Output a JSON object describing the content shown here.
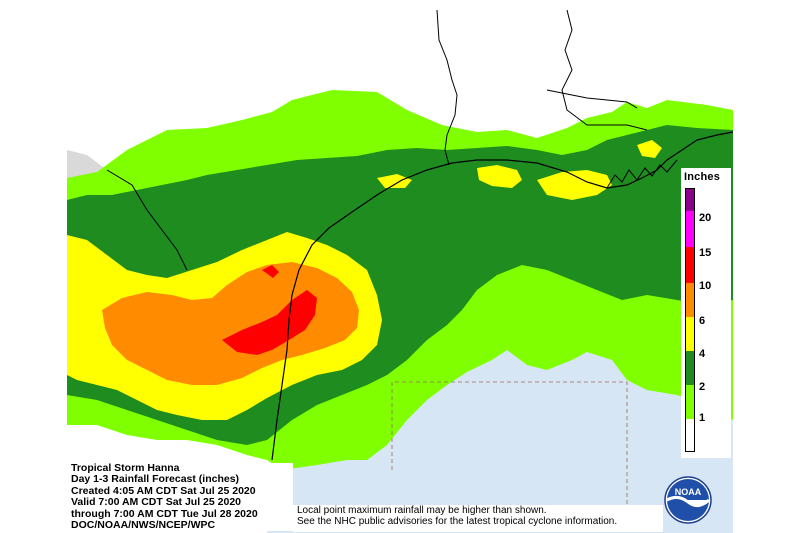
{
  "legend": {
    "title": "Inches",
    "ticks": [
      {
        "label": "20",
        "value": 20
      },
      {
        "label": "15",
        "value": 15
      },
      {
        "label": "10",
        "value": 10
      },
      {
        "label": "6",
        "value": 6
      },
      {
        "label": "4",
        "value": 4
      },
      {
        "label": "2",
        "value": 2
      },
      {
        "label": "1",
        "value": 1
      }
    ],
    "colors": {
      "0-1": "#ffffff",
      "1-2": "#7fff00",
      "2-4": "#1e8c1e",
      "4-6": "#ffff00",
      "6-10": "#ff8c00",
      "10-15": "#ff0000",
      "15-20": "#ff00ff",
      "20+": "#8b008b"
    }
  },
  "info": {
    "lines": [
      "Tropical Storm Hanna",
      "Day 1-3 Rainfall Forecast (inches)",
      "Created 4:05 AM CDT Sat Jul 25 2020",
      "Valid 7:00 AM CDT Sat Jul 25 2020",
      "through 7:00 AM CDT Tue Jul 28 2020",
      "DOC/NOAA/NWS/NCEP/WPC"
    ]
  },
  "note": {
    "lines": [
      "Local point maximum rainfall may be higher than shown.",
      "See the NHC public advisories for the latest tropical cyclone information."
    ]
  },
  "logo": {
    "text": "NOAA",
    "icon": "noaa-logo-icon"
  },
  "map": {
    "land_color": "#ffffff",
    "water_color": "#d6e6f5",
    "gray_area_color": "#d9d9d9",
    "border_color": "#000000"
  }
}
